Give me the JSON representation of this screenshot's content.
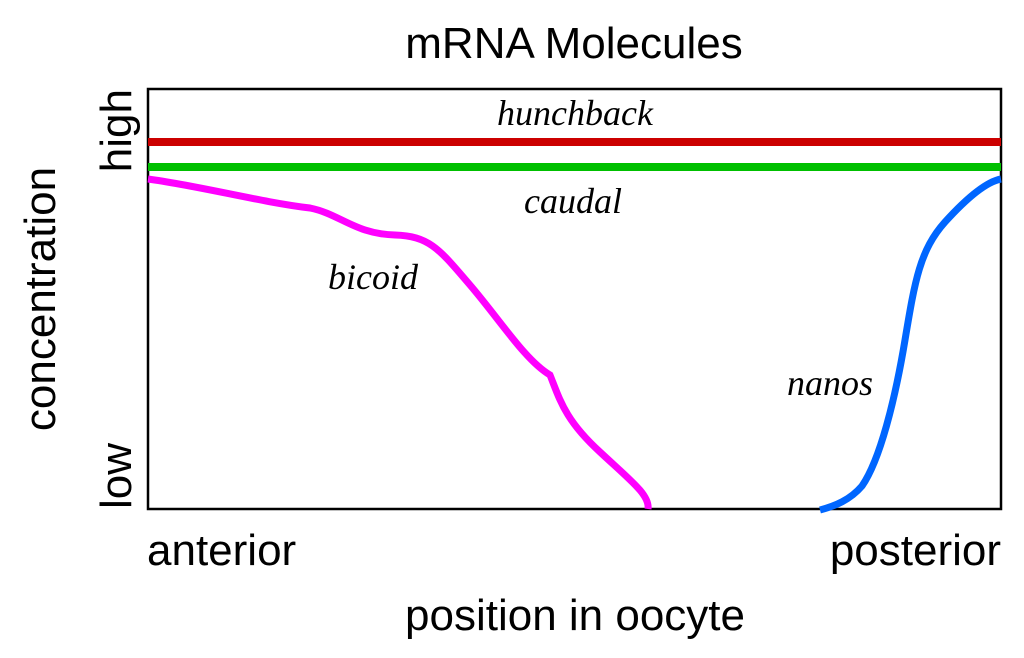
{
  "title": "mRNA Molecules",
  "xlabel": "position in oocyte",
  "ylabel": "concentration",
  "x_ticks": [
    "anterior",
    "posterior"
  ],
  "y_ticks": [
    "low",
    "high"
  ],
  "genes": {
    "hunchback": {
      "label": "hunchback",
      "color": "#cc0000"
    },
    "caudal": {
      "label": "caudal",
      "color": "#00c000"
    },
    "bicoid": {
      "label": "bicoid",
      "color": "#ff00ff"
    },
    "nanos": {
      "label": "nanos",
      "color": "#0066ff"
    }
  }
}
